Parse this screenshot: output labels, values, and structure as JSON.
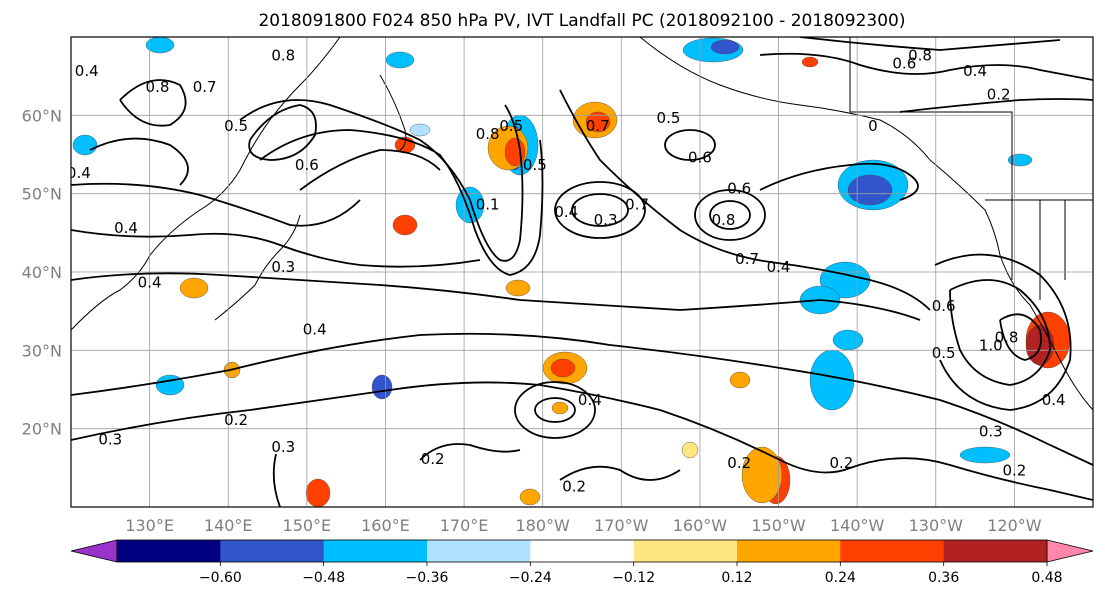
{
  "chart_data": {
    "type": "heatmap",
    "title": "2018091800 F024 850 hPa PV, IVT Landfall PC (2018092100 - 2018092300)",
    "map": {
      "lon_range": [
        120,
        250
      ],
      "lat_range": [
        10,
        70
      ],
      "grid": true,
      "coastlines": true
    },
    "x_ticks": [
      {
        "lon": 130,
        "label": "130°E"
      },
      {
        "lon": 140,
        "label": "140°E"
      },
      {
        "lon": 150,
        "label": "150°E"
      },
      {
        "lon": 160,
        "label": "160°E"
      },
      {
        "lon": 170,
        "label": "170°E"
      },
      {
        "lon": 180,
        "label": "180°W"
      },
      {
        "lon": 190,
        "label": "170°W"
      },
      {
        "lon": 200,
        "label": "160°W"
      },
      {
        "lon": 210,
        "label": "150°W"
      },
      {
        "lon": 220,
        "label": "140°W"
      },
      {
        "lon": 230,
        "label": "130°W"
      },
      {
        "lon": 240,
        "label": "120°W"
      }
    ],
    "y_ticks": [
      {
        "lat": 20,
        "label": "20°N"
      },
      {
        "lat": 30,
        "label": "30°N"
      },
      {
        "lat": 40,
        "label": "40°N"
      },
      {
        "lat": 50,
        "label": "50°N"
      },
      {
        "lat": 60,
        "label": "60°N"
      }
    ],
    "colorbar": {
      "ticks": [
        -0.6,
        -0.48,
        -0.36,
        -0.24,
        -0.12,
        0.12,
        0.24,
        0.36,
        0.48,
        0.6
      ],
      "tick_labels": [
        "−0.60",
        "−0.48",
        "−0.36",
        "−0.24",
        "−0.12",
        "0.12",
        "0.24",
        "0.36",
        "0.48",
        "0.60"
      ],
      "colors": [
        "#9933cc",
        "#000080",
        "#3355cc",
        "#00bfff",
        "#b0e2ff",
        "#ffffff",
        "#ffe680",
        "#ffa500",
        "#ff4000",
        "#b22222",
        "#ff88aa"
      ],
      "extend": "both"
    },
    "contour_labels": [
      {
        "text": "0.4",
        "lon": 122,
        "lat": 65
      },
      {
        "text": "0.8",
        "lon": 131,
        "lat": 63
      },
      {
        "text": "0.7",
        "lon": 137,
        "lat": 63
      },
      {
        "text": "0.5",
        "lon": 141,
        "lat": 58
      },
      {
        "text": "0.8",
        "lon": 147,
        "lat": 67
      },
      {
        "text": "0.6",
        "lon": 150,
        "lat": 53
      },
      {
        "text": "0.4",
        "lon": 121,
        "lat": 52
      },
      {
        "text": "0.4",
        "lon": 127,
        "lat": 45
      },
      {
        "text": "0.4",
        "lon": 130,
        "lat": 38
      },
      {
        "text": "0.3",
        "lon": 147,
        "lat": 40
      },
      {
        "text": "0.4",
        "lon": 151,
        "lat": 32
      },
      {
        "text": "0.2",
        "lon": 141,
        "lat": 20.5
      },
      {
        "text": "0.3",
        "lon": 125,
        "lat": 18
      },
      {
        "text": "0.3",
        "lon": 147,
        "lat": 17
      },
      {
        "text": "0.2",
        "lon": 166,
        "lat": 15.5
      },
      {
        "text": "0.1",
        "lon": 173,
        "lat": 48
      },
      {
        "text": "0.5",
        "lon": 176,
        "lat": 58
      },
      {
        "text": "0.5",
        "lon": 179,
        "lat": 53
      },
      {
        "text": "0.8",
        "lon": 173,
        "lat": 57
      },
      {
        "text": "0.7",
        "lon": 187,
        "lat": 58
      },
      {
        "text": "0.4",
        "lon": 183,
        "lat": 47
      },
      {
        "text": "0.3",
        "lon": 188,
        "lat": 46
      },
      {
        "text": "0.5",
        "lon": 196,
        "lat": 59
      },
      {
        "text": "0.6",
        "lon": 200,
        "lat": 54
      },
      {
        "text": "0.7",
        "lon": 192,
        "lat": 48
      },
      {
        "text": "0.6",
        "lon": 205,
        "lat": 50
      },
      {
        "text": "0.8",
        "lon": 203,
        "lat": 46
      },
      {
        "text": "0.7",
        "lon": 206,
        "lat": 41
      },
      {
        "text": "0.4",
        "lon": 210,
        "lat": 40
      },
      {
        "text": "0.4",
        "lon": 186,
        "lat": 23
      },
      {
        "text": "0.2",
        "lon": 184,
        "lat": 12
      },
      {
        "text": "0.2",
        "lon": 205,
        "lat": 15
      },
      {
        "text": "0.2",
        "lon": 218,
        "lat": 15
      },
      {
        "text": "0.8",
        "lon": 228,
        "lat": 67
      },
      {
        "text": "0.6",
        "lon": 226,
        "lat": 66
      },
      {
        "text": "0.4",
        "lon": 235,
        "lat": 65
      },
      {
        "text": "0.2",
        "lon": 238,
        "lat": 62
      },
      {
        "text": "0",
        "lon": 222,
        "lat": 58
      },
      {
        "text": "0.6",
        "lon": 231,
        "lat": 35
      },
      {
        "text": "0.5",
        "lon": 231,
        "lat": 29
      },
      {
        "text": "1.0",
        "lon": 237,
        "lat": 30
      },
      {
        "text": "0.8",
        "lon": 239,
        "lat": 31
      },
      {
        "text": "0.4",
        "lon": 245,
        "lat": 23
      },
      {
        "text": "0.3",
        "lon": 237,
        "lat": 19
      },
      {
        "text": "0.2",
        "lon": 240,
        "lat": 14
      }
    ]
  }
}
